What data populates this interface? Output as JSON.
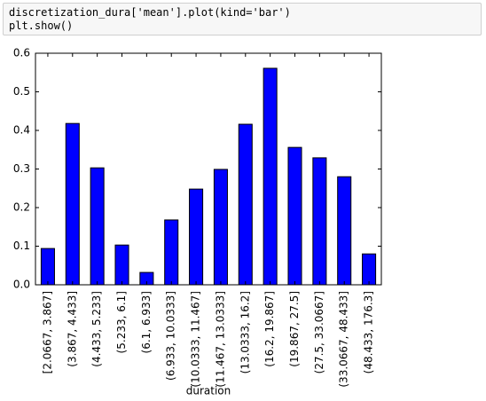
{
  "code": {
    "lines": [
      "discretization_dura['mean'].plot(kind='bar')",
      "plt.show()"
    ]
  },
  "chart_data": {
    "type": "bar",
    "xlabel": "duration",
    "categories": [
      "[2.0667, 3.867]",
      "(3.867, 4.433]",
      "(4.433, 5.233]",
      "(5.233, 6.1]",
      "(6.1, 6.933]",
      "(6.933, 10.0333]",
      "(10.0333, 11.467]",
      "(11.467, 13.0333]",
      "(13.0333, 16.2]",
      "(16.2, 19.867]",
      "(19.867, 27.5]",
      "(27.5, 33.0667]",
      "(33.0667, 48.433]",
      "(48.433, 176.3]"
    ],
    "values": [
      0.094,
      0.418,
      0.303,
      0.103,
      0.032,
      0.168,
      0.248,
      0.299,
      0.416,
      0.561,
      0.356,
      0.329,
      0.28,
      0.08
    ],
    "color": "#0000ff",
    "ylim": [
      0,
      0.6
    ],
    "yticks": [
      {
        "value": 0,
        "label": "0.0"
      },
      0.1,
      0.2,
      0.3,
      0.4,
      0.5,
      0.6
    ],
    "grid": false
  }
}
